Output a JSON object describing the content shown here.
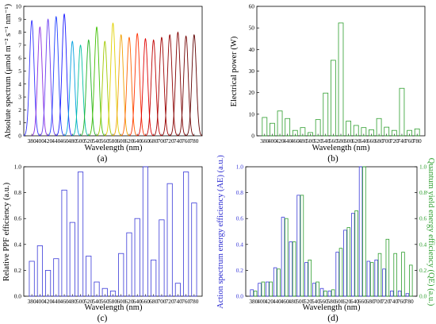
{
  "chart_data": [
    {
      "panel": "(a)",
      "type": "line",
      "xlabel": "Wavelength (nm)",
      "ylabel": "Absolute spectrum (μmol m⁻² s⁻¹ nm⁻¹)",
      "ylim": [
        0,
        10
      ],
      "yticks": [
        0,
        1,
        2,
        3,
        4,
        5,
        6,
        7,
        8,
        9,
        10
      ],
      "xtick_labels": [
        "380",
        "400",
        "420",
        "440",
        "460",
        "480",
        "500",
        "520",
        "540",
        "560",
        "580",
        "600",
        "620",
        "640",
        "660",
        "680",
        "700",
        "720",
        "740",
        "760",
        "780"
      ],
      "series": [
        {
          "peak_nm": 380,
          "peak": 8.9,
          "color": "#3030ff"
        },
        {
          "peak_nm": 400,
          "peak": 8.4,
          "color": "#8a2be2"
        },
        {
          "peak_nm": 420,
          "peak": 9.0,
          "color": "#6a3cf0"
        },
        {
          "peak_nm": 440,
          "peak": 9.2,
          "color": "#2040ff"
        },
        {
          "peak_nm": 460,
          "peak": 9.4,
          "color": "#1a1aff"
        },
        {
          "peak_nm": 480,
          "peak": 7.3,
          "color": "#00a0e0"
        },
        {
          "peak_nm": 500,
          "peak": 7.0,
          "color": "#00c0a0"
        },
        {
          "peak_nm": 520,
          "peak": 7.4,
          "color": "#20b020"
        },
        {
          "peak_nm": 540,
          "peak": 8.4,
          "color": "#40c000"
        },
        {
          "peak_nm": 560,
          "peak": 7.3,
          "color": "#a0c800"
        },
        {
          "peak_nm": 580,
          "peak": 8.7,
          "color": "#e0d000"
        },
        {
          "peak_nm": 600,
          "peak": 7.8,
          "color": "#f0a000"
        },
        {
          "peak_nm": 620,
          "peak": 7.6,
          "color": "#ff6000"
        },
        {
          "peak_nm": 640,
          "peak": 7.9,
          "color": "#ff3000"
        },
        {
          "peak_nm": 660,
          "peak": 7.5,
          "color": "#e00000"
        },
        {
          "peak_nm": 680,
          "peak": 7.4,
          "color": "#c00000"
        },
        {
          "peak_nm": 700,
          "peak": 7.6,
          "color": "#a00000"
        },
        {
          "peak_nm": 720,
          "peak": 7.8,
          "color": "#900000"
        },
        {
          "peak_nm": 740,
          "peak": 8.0,
          "color": "#800000"
        },
        {
          "peak_nm": 760,
          "peak": 7.7,
          "color": "#700000"
        },
        {
          "peak_nm": 780,
          "peak": 7.8,
          "color": "#600000"
        }
      ]
    },
    {
      "panel": "(b)",
      "type": "bar",
      "xlabel": "Wavelength (nm)",
      "ylabel": "Electrical power (W)",
      "ylim": [
        0,
        60
      ],
      "yticks": [
        0,
        10,
        20,
        30,
        40,
        50,
        60
      ],
      "categories": [
        "380",
        "400",
        "420",
        "440",
        "460",
        "480",
        "500",
        "520",
        "540",
        "560",
        "580",
        "600",
        "620",
        "640",
        "660",
        "680",
        "700",
        "720",
        "740",
        "760",
        "780"
      ],
      "values": [
        8.5,
        5.8,
        11.5,
        8.0,
        2.5,
        3.8,
        1.5,
        7.5,
        19.8,
        35.0,
        52.3,
        6.8,
        4.8,
        3.8,
        2.8,
        8.0,
        4.0,
        2.5,
        22.0,
        2.5,
        3.2
      ],
      "color": "#2e9e2e"
    },
    {
      "panel": "(c)",
      "type": "bar",
      "xlabel": "Wavelength (nm)",
      "ylabel": "Relative PPF efficiency (a.u.)",
      "ylim": [
        0,
        1.0
      ],
      "yticks": [
        0.0,
        0.2,
        0.4,
        0.6,
        0.8,
        1.0
      ],
      "categories": [
        "380",
        "400",
        "420",
        "440",
        "460",
        "480",
        "500",
        "520",
        "540",
        "560",
        "580",
        "600",
        "620",
        "640",
        "660",
        "680",
        "700",
        "720",
        "740",
        "760",
        "780"
      ],
      "values": [
        0.27,
        0.39,
        0.2,
        0.29,
        0.82,
        0.57,
        0.96,
        0.31,
        0.11,
        0.06,
        0.04,
        0.33,
        0.49,
        0.6,
        1.0,
        0.28,
        0.59,
        0.87,
        0.1,
        0.96,
        0.72
      ],
      "color": "#3a3ad8"
    },
    {
      "panel": "(d)",
      "type": "bar",
      "xlabel": "Wavelength (nm)",
      "ylabel": "Action spectrum energy efficiency (AE) (a.u.)",
      "y2label": "Quantum yield energy efficiency (QE) (a.u.)",
      "ylim": [
        0,
        1.0
      ],
      "yticks": [
        0.0,
        0.2,
        0.4,
        0.6,
        0.8,
        1.0
      ],
      "categories": [
        "380",
        "400",
        "420",
        "440",
        "460",
        "480",
        "500",
        "520",
        "540",
        "560",
        "580",
        "600",
        "620",
        "640",
        "660",
        "680",
        "700",
        "720",
        "740",
        "760",
        "780"
      ],
      "series": [
        {
          "name": "AE",
          "axis": "left",
          "color": "#3a3ad8",
          "values": [
            0.05,
            0.1,
            0.11,
            0.22,
            0.61,
            0.42,
            0.78,
            0.26,
            0.1,
            0.06,
            0.04,
            0.34,
            0.51,
            0.64,
            1.0,
            0.27,
            0.28,
            0.21,
            0.04,
            0.04,
            0.02
          ]
        },
        {
          "name": "QE",
          "axis": "right",
          "color": "#2e9e2e",
          "values": [
            0.04,
            0.11,
            0.11,
            0.21,
            0.6,
            0.42,
            0.78,
            0.28,
            0.11,
            0.04,
            0.05,
            0.37,
            0.53,
            0.66,
            1.0,
            0.26,
            0.33,
            0.44,
            0.33,
            0.34,
            0.24
          ]
        }
      ]
    }
  ]
}
